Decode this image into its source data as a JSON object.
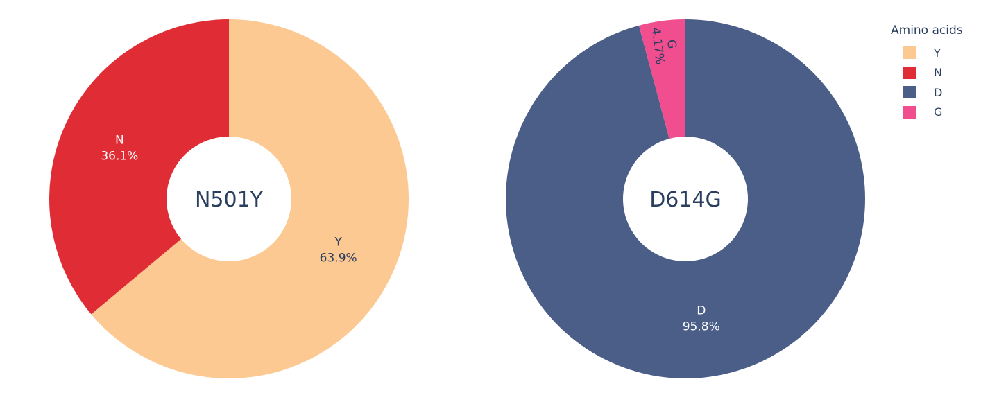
{
  "legend": {
    "title": "Amino acids",
    "items": [
      {
        "label": "Y",
        "color": "#FCC993"
      },
      {
        "label": "N",
        "color": "#E02D35"
      },
      {
        "label": "D",
        "color": "#4B5E88"
      },
      {
        "label": "G",
        "color": "#F04E8F"
      }
    ]
  },
  "chart_data": [
    {
      "type": "pie",
      "hole": true,
      "center_label": "N501Y",
      "slices": [
        {
          "label": "Y",
          "value": 63.9,
          "percent_text": "63.9%",
          "color": "#FCC993",
          "text_color": "#2a3f5f"
        },
        {
          "label": "N",
          "value": 36.1,
          "percent_text": "36.1%",
          "color": "#E02D35",
          "text_color": "#ffffff"
        }
      ],
      "direction": "clockwise",
      "start": "top"
    },
    {
      "type": "pie",
      "hole": true,
      "center_label": "D614G",
      "slices": [
        {
          "label": "D",
          "value": 95.8,
          "percent_text": "95.8%",
          "color": "#4B5E88",
          "text_color": "#ffffff"
        },
        {
          "label": "G",
          "value": 4.17,
          "percent_text": "4.17%",
          "color": "#F04E8F",
          "text_color": "#2a3f5f"
        }
      ],
      "direction": "clockwise",
      "start": "top"
    }
  ]
}
